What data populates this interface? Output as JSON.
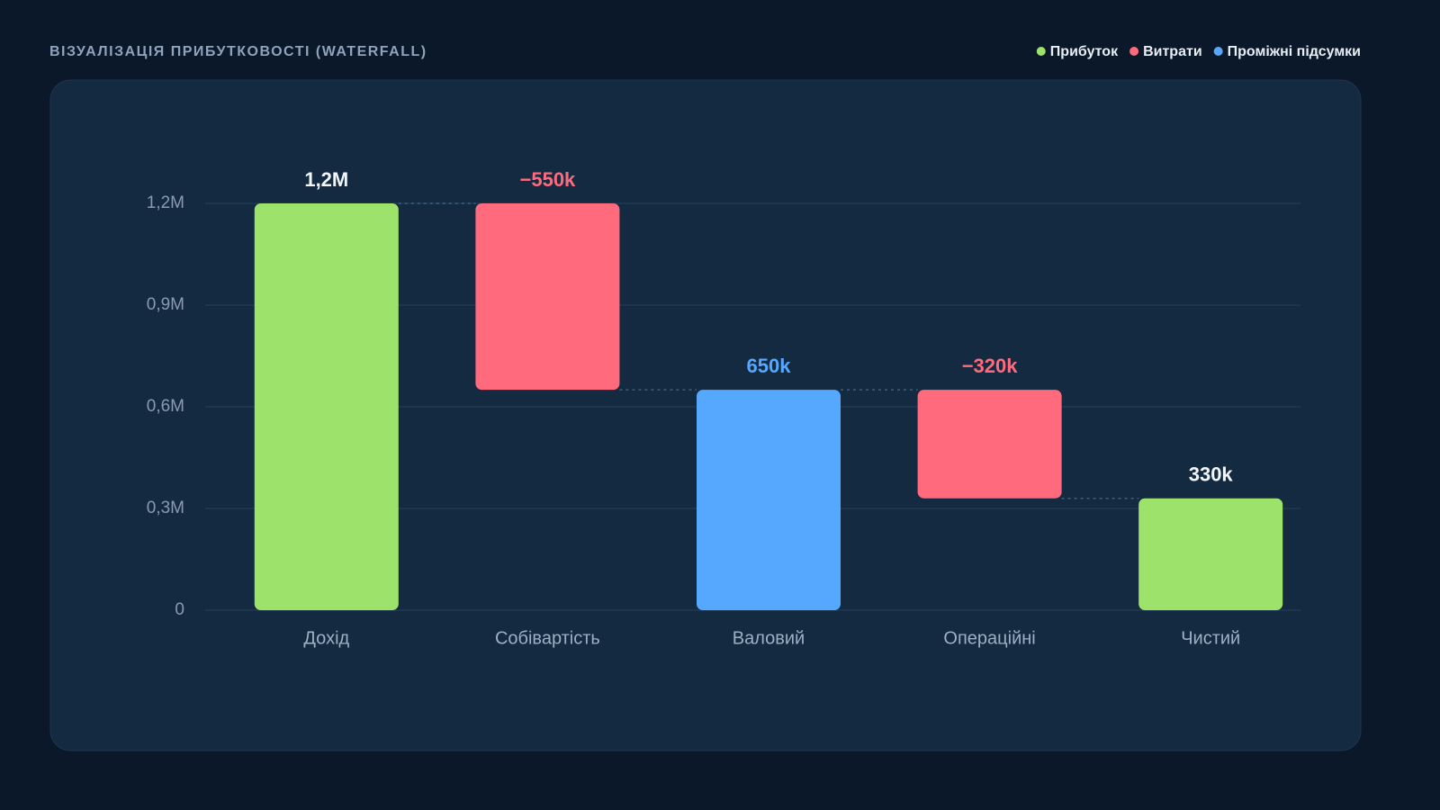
{
  "chart_data": {
    "type": "waterfall",
    "title": "ВІЗУАЛІЗАЦІЯ ПРИБУТКОВОСТІ (WATERFALL)",
    "legend": [
      {
        "name": "Прибуток",
        "color": "#9de36b"
      },
      {
        "name": "Витрати",
        "color": "#ff6b7d"
      },
      {
        "name": "Проміжні підсумки",
        "color": "#56a8ff"
      }
    ],
    "categories": [
      "Дохід",
      "Собівартість",
      "Валовий",
      "Операційні",
      "Чистий"
    ],
    "values": [
      1200000,
      -550000,
      650000,
      -320000,
      330000
    ],
    "value_labels": [
      "1,2M",
      "−550k",
      "650k",
      "−320k",
      "330k"
    ],
    "measure": [
      "absolute",
      "relative",
      "total",
      "relative",
      "absolute"
    ],
    "colors": [
      "#9de36b",
      "#ff6b7d",
      "#56a8ff",
      "#ff6b7d",
      "#9de36b"
    ],
    "ylim": [
      0,
      1200000
    ],
    "yticks": [
      0,
      {
        "value": 300000,
        "label": "0,3M"
      },
      {
        "value": 600000,
        "label": "0,6M"
      },
      {
        "value": 900000,
        "label": "0,9M"
      },
      {
        "value": 1200000,
        "label": "1,2M"
      }
    ],
    "grid": true
  }
}
